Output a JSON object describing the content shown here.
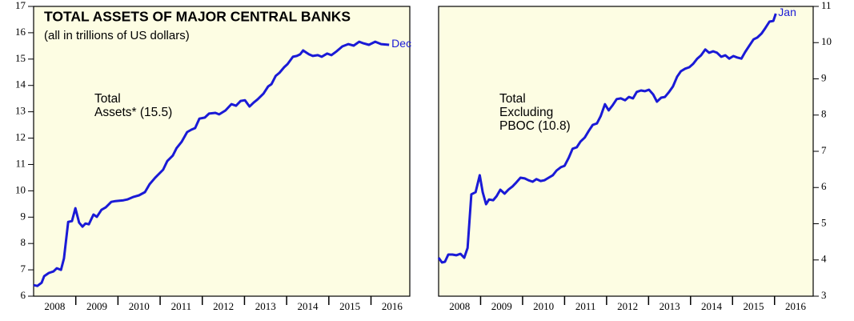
{
  "chart_data": [
    {
      "type": "line",
      "title": "TOTAL ASSETS OF MAJOR CENTRAL BANKS",
      "subtitle": "(all in trillions of US dollars)",
      "annotation": [
        "Total",
        "Assets* (15.5)"
      ],
      "end_label": "Dec",
      "color": "#1a1ad6",
      "y_axis_side": "left",
      "xlim": [
        2008,
        2016.92
      ],
      "xticks": [
        {
          "value": 2008.5,
          "label": "2008"
        },
        {
          "value": 2009.5,
          "label": "2009"
        },
        {
          "value": 2010.5,
          "label": "2010"
        },
        {
          "value": 2011.5,
          "label": "2011"
        },
        {
          "value": 2012.5,
          "label": "2012"
        },
        {
          "value": 2013.5,
          "label": "2013"
        },
        {
          "value": 2014.5,
          "label": "2014"
        },
        {
          "value": 2015.5,
          "label": "2015"
        },
        {
          "value": 2016.5,
          "label": "2016"
        }
      ],
      "ylim": [
        6,
        17
      ],
      "yticks": [
        6,
        7,
        8,
        9,
        10,
        11,
        12,
        13,
        14,
        15,
        16,
        17
      ],
      "x": [
        2008.0,
        2008.09,
        2008.19,
        2008.25,
        2008.36,
        2008.47,
        2008.55,
        2008.65,
        2008.72,
        2008.82,
        2008.91,
        2008.99,
        2009.08,
        2009.16,
        2009.23,
        2009.31,
        2009.42,
        2009.5,
        2009.61,
        2009.71,
        2009.84,
        2009.94,
        2010.13,
        2010.22,
        2010.37,
        2010.5,
        2010.64,
        2010.75,
        2010.88,
        2011.07,
        2011.17,
        2011.3,
        2011.39,
        2011.51,
        2011.64,
        2011.74,
        2011.83,
        2011.93,
        2012.06,
        2012.16,
        2012.31,
        2012.4,
        2012.55,
        2012.69,
        2012.8,
        2012.91,
        2013.01,
        2013.12,
        2013.22,
        2013.31,
        2013.45,
        2013.56,
        2013.64,
        2013.74,
        2013.83,
        2013.94,
        2014.02,
        2014.15,
        2014.24,
        2014.32,
        2014.39,
        2014.53,
        2014.62,
        2014.74,
        2014.83,
        2014.96,
        2015.06,
        2015.19,
        2015.32,
        2015.46,
        2015.59,
        2015.72,
        2015.82,
        2015.95,
        2016.1,
        2016.24,
        2016.43
      ],
      "values": [
        6.42,
        6.39,
        6.51,
        6.76,
        6.88,
        6.94,
        7.06,
        7.0,
        7.43,
        8.82,
        8.85,
        9.34,
        8.79,
        8.64,
        8.76,
        8.73,
        9.1,
        9.01,
        9.28,
        9.37,
        9.58,
        9.61,
        9.64,
        9.67,
        9.77,
        9.83,
        9.95,
        10.25,
        10.49,
        10.8,
        11.13,
        11.34,
        11.62,
        11.86,
        12.23,
        12.32,
        12.38,
        12.74,
        12.78,
        12.93,
        12.96,
        12.9,
        13.05,
        13.29,
        13.23,
        13.41,
        13.44,
        13.2,
        13.35,
        13.47,
        13.69,
        13.96,
        14.05,
        14.36,
        14.48,
        14.69,
        14.81,
        15.09,
        15.12,
        15.18,
        15.33,
        15.18,
        15.12,
        15.15,
        15.09,
        15.21,
        15.15,
        15.3,
        15.48,
        15.57,
        15.51,
        15.66,
        15.6,
        15.54,
        15.66,
        15.57,
        15.54
      ]
    },
    {
      "type": "line",
      "annotation": [
        "Total",
        "Excluding",
        "PBOC (10.8)"
      ],
      "end_label": "Jan",
      "color": "#1a1ad6",
      "y_axis_side": "right",
      "xlim": [
        2008,
        2016.92
      ],
      "xticks": [
        {
          "value": 2008.5,
          "label": "2008"
        },
        {
          "value": 2009.5,
          "label": "2009"
        },
        {
          "value": 2010.5,
          "label": "2010"
        },
        {
          "value": 2011.5,
          "label": "2011"
        },
        {
          "value": 2012.5,
          "label": "2012"
        },
        {
          "value": 2013.5,
          "label": "2013"
        },
        {
          "value": 2014.5,
          "label": "2014"
        },
        {
          "value": 2015.5,
          "label": "2015"
        },
        {
          "value": 2016.5,
          "label": "2016"
        }
      ],
      "ylim": [
        3,
        11
      ],
      "yticks": [
        3,
        4,
        5,
        6,
        7,
        8,
        9,
        10,
        11
      ],
      "x": [
        2008.0,
        2008.08,
        2008.15,
        2008.23,
        2008.33,
        2008.42,
        2008.52,
        2008.61,
        2008.69,
        2008.78,
        2008.88,
        2008.98,
        2009.05,
        2009.13,
        2009.2,
        2009.3,
        2009.38,
        2009.47,
        2009.57,
        2009.66,
        2009.76,
        2009.85,
        2009.95,
        2010.05,
        2010.14,
        2010.24,
        2010.33,
        2010.43,
        2010.52,
        2010.62,
        2010.72,
        2010.81,
        2010.91,
        2011.0,
        2011.1,
        2011.19,
        2011.29,
        2011.38,
        2011.48,
        2011.58,
        2011.67,
        2011.77,
        2011.86,
        2011.96,
        2012.05,
        2012.15,
        2012.24,
        2012.34,
        2012.44,
        2012.53,
        2012.63,
        2012.72,
        2012.82,
        2012.91,
        2013.01,
        2013.11,
        2013.2,
        2013.3,
        2013.39,
        2013.49,
        2013.58,
        2013.68,
        2013.77,
        2013.87,
        2013.97,
        2014.06,
        2014.16,
        2014.25,
        2014.35,
        2014.44,
        2014.54,
        2014.63,
        2014.73,
        2014.83,
        2014.92,
        2015.02,
        2015.11,
        2015.21,
        2015.3,
        2015.4,
        2015.5,
        2015.59,
        2015.69,
        2015.78,
        2015.88,
        2015.97,
        2016.03
      ],
      "values": [
        4.06,
        3.93,
        3.95,
        4.15,
        4.15,
        4.13,
        4.17,
        4.06,
        4.33,
        5.81,
        5.87,
        6.34,
        5.87,
        5.54,
        5.67,
        5.65,
        5.76,
        5.94,
        5.83,
        5.94,
        6.03,
        6.14,
        6.27,
        6.25,
        6.2,
        6.16,
        6.23,
        6.18,
        6.2,
        6.27,
        6.34,
        6.47,
        6.56,
        6.6,
        6.82,
        7.07,
        7.11,
        7.27,
        7.38,
        7.57,
        7.73,
        7.77,
        7.97,
        8.3,
        8.13,
        8.28,
        8.44,
        8.46,
        8.41,
        8.5,
        8.46,
        8.64,
        8.68,
        8.66,
        8.7,
        8.57,
        8.37,
        8.48,
        8.5,
        8.64,
        8.79,
        9.06,
        9.21,
        9.28,
        9.32,
        9.41,
        9.56,
        9.65,
        9.81,
        9.72,
        9.76,
        9.72,
        9.61,
        9.65,
        9.56,
        9.63,
        9.59,
        9.56,
        9.74,
        9.92,
        10.09,
        10.14,
        10.25,
        10.4,
        10.58,
        10.6,
        10.8
      ]
    }
  ]
}
